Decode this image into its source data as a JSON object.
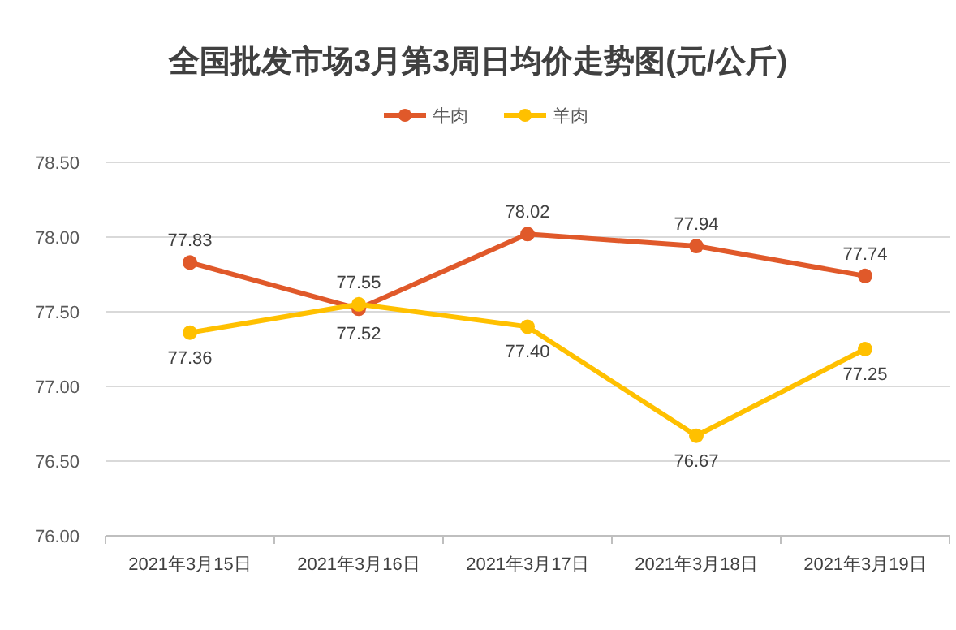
{
  "chart_data": {
    "type": "line",
    "title": "全国批发市场3月第3周日均价走势图(元/公斤)",
    "categories": [
      "2021年3月15日",
      "2021年3月16日",
      "2021年3月17日",
      "2021年3月18日",
      "2021年3月19日"
    ],
    "series": [
      {
        "name": "牛肉",
        "color": "#e0592a",
        "values": [
          77.83,
          77.52,
          78.02,
          77.94,
          77.74
        ],
        "value_labels": [
          "77.83",
          "77.52",
          "78.02",
          "77.94",
          "77.74"
        ]
      },
      {
        "name": "羊肉",
        "color": "#ffc000",
        "values": [
          77.36,
          77.55,
          77.4,
          76.67,
          77.25
        ],
        "value_labels": [
          "77.36",
          "77.55",
          "77.40",
          "76.67",
          "77.25"
        ]
      }
    ],
    "ylim": [
      76.0,
      78.5
    ],
    "yticks": [
      {
        "value": 76.0,
        "label": "76.00"
      },
      {
        "value": 76.5,
        "label": "76.50"
      },
      {
        "value": 77.0,
        "label": "77.00"
      },
      {
        "value": 77.5,
        "label": "77.50"
      },
      {
        "value": 78.0,
        "label": "78.00"
      },
      {
        "value": 78.5,
        "label": "78.50"
      }
    ],
    "grid": "y",
    "legend": "top",
    "marker": "circle",
    "line_style": "solid"
  }
}
